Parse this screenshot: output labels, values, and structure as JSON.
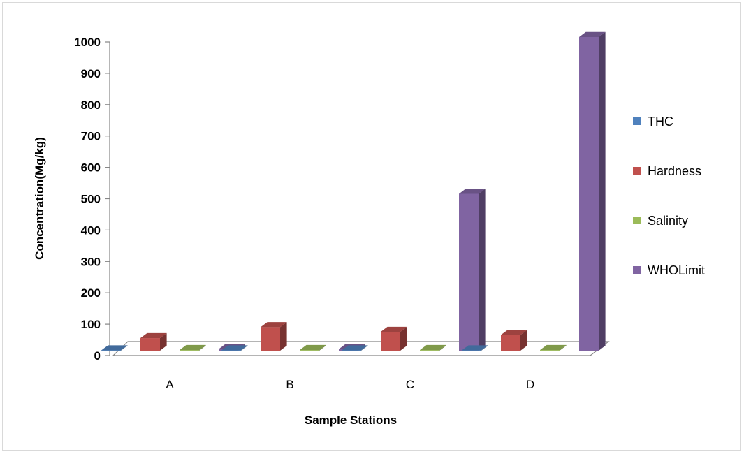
{
  "chart_data": {
    "type": "bar",
    "title": "",
    "xlabel": "Sample Stations",
    "ylabel": "Concentration(Mg/kg)",
    "categories": [
      "A",
      "B",
      "C",
      "D"
    ],
    "ylim": [
      0,
      1000
    ],
    "yticks": [
      "0",
      "100",
      "200",
      "300",
      "400",
      "500",
      "600",
      "700",
      "800",
      "900",
      "1000"
    ],
    "legend_position": "right",
    "grid": false,
    "style": "3d-clustered-column",
    "series": [
      {
        "name": "THC",
        "color": "#4f81bd",
        "values": [
          1,
          1,
          1,
          1
        ]
      },
      {
        "name": "Hardness",
        "color": "#c0504d",
        "values": [
          40,
          75,
          60,
          50
        ]
      },
      {
        "name": "Salinity",
        "color": "#9bbb59",
        "values": [
          2,
          2,
          2,
          2
        ]
      },
      {
        "name": "WHOLimit",
        "color": "#8064a2",
        "values": [
          5,
          5,
          500,
          1000
        ]
      }
    ]
  }
}
